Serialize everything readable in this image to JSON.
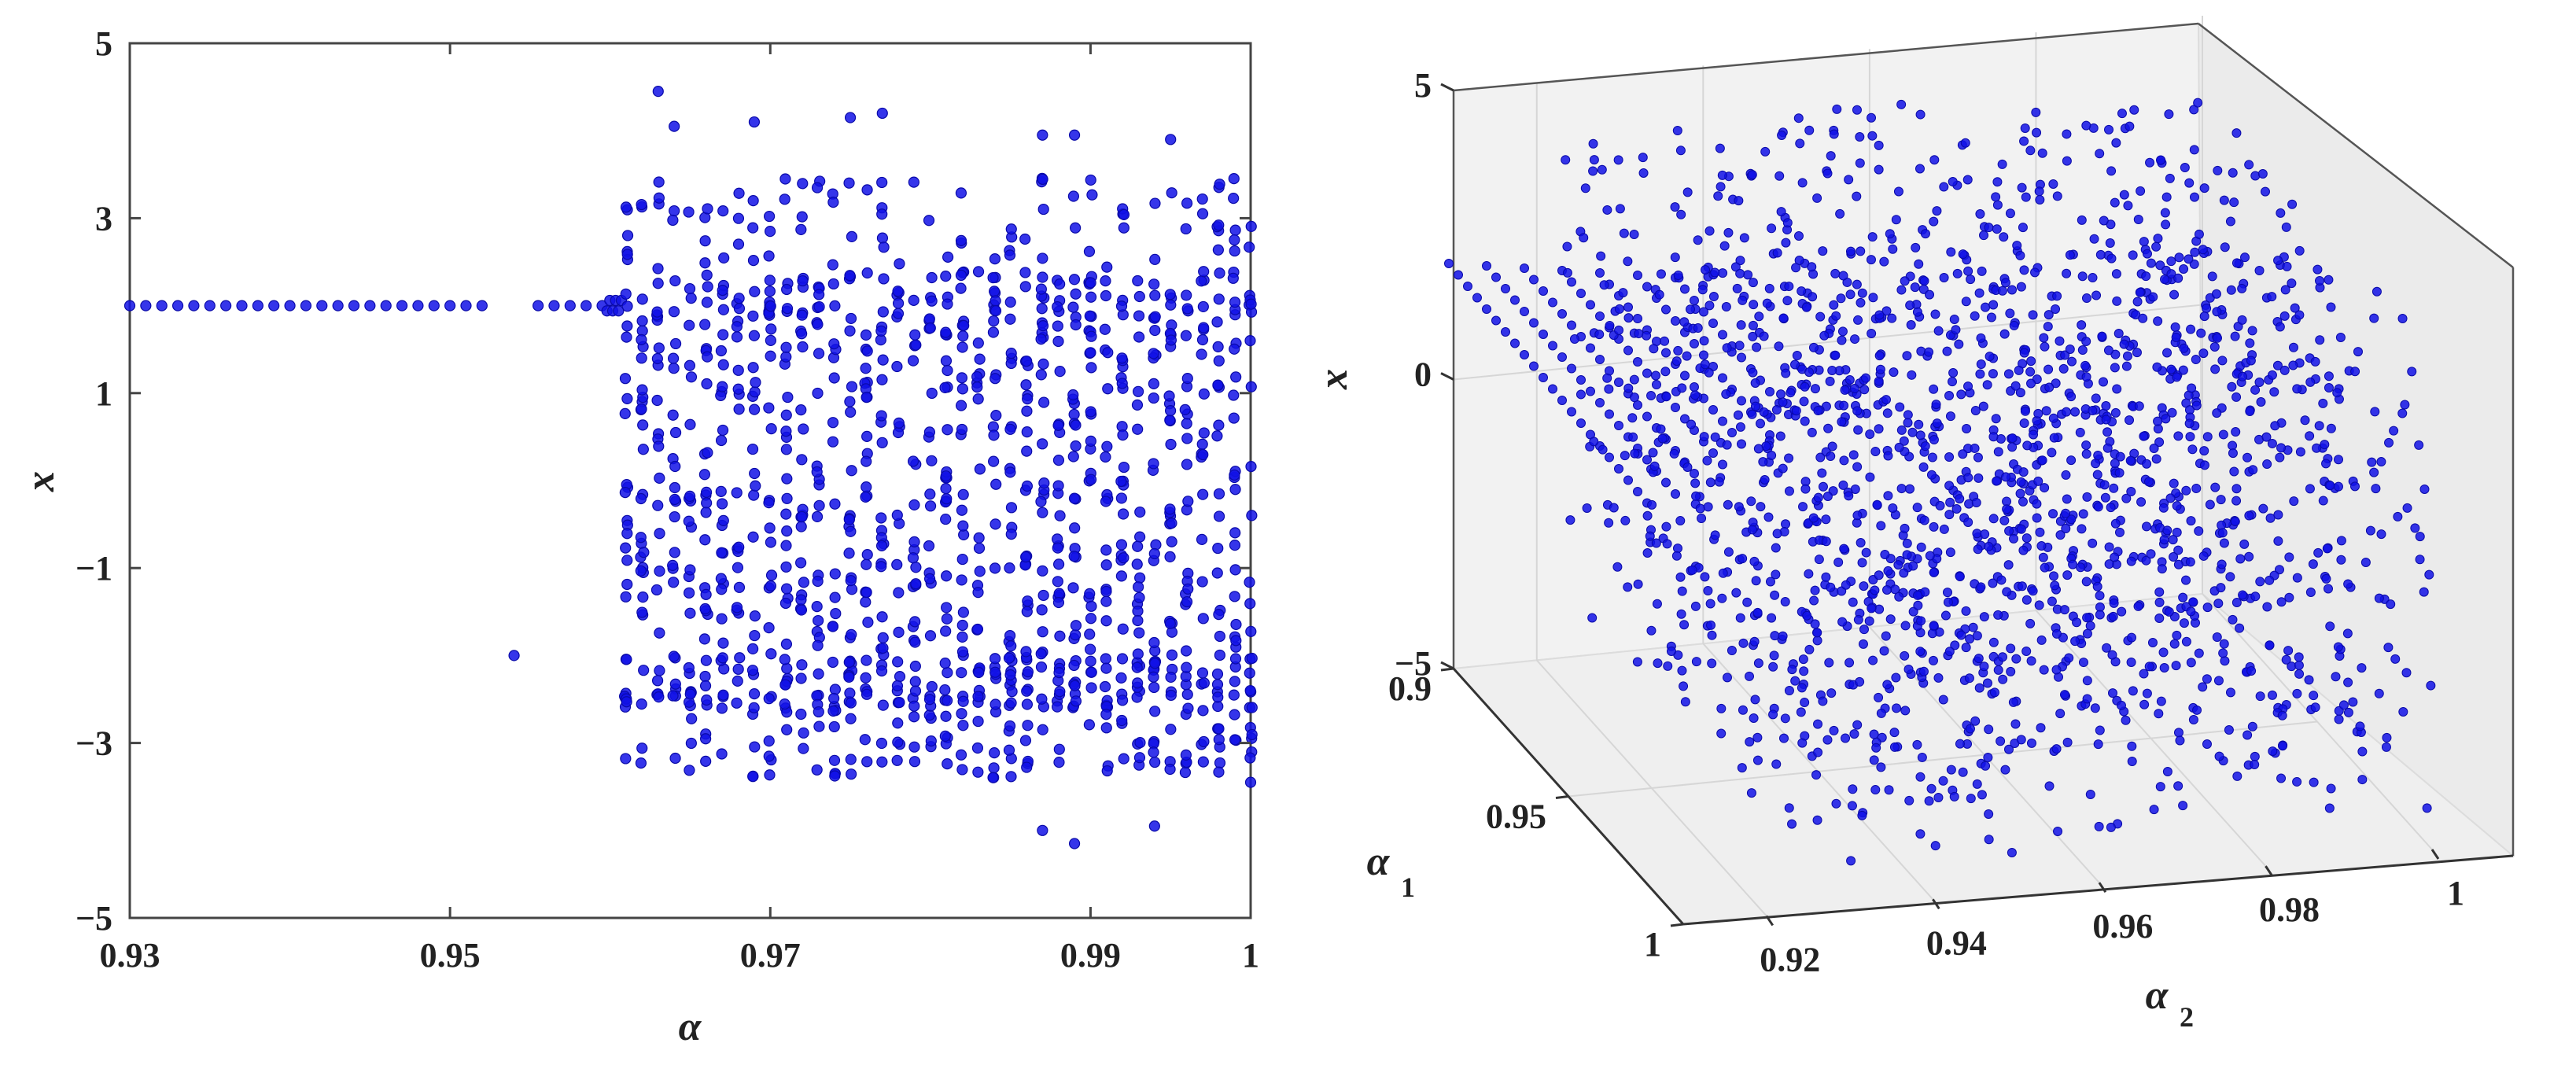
{
  "chart_data": [
    {
      "type": "scatter",
      "xlabel": "α",
      "ylabel": "x",
      "xlim": [
        0.93,
        1.0
      ],
      "ylim": [
        -5,
        5
      ],
      "x_ticks": [
        "0.93",
        "0.95",
        "0.97",
        "0.99",
        "1"
      ],
      "y_ticks": [
        "5",
        "3",
        "1",
        "−1",
        "−3",
        "−5"
      ],
      "marker_color": "#1212e6",
      "period_one_branch": {
        "x_from": 0.93,
        "x_to": 0.96,
        "y": 2.0,
        "step": 0.001
      },
      "isolated_points": [
        {
          "x": 0.954,
          "y": -2.0
        }
      ],
      "chaotic_region": {
        "x_from": 0.961,
        "x_to": 1.0,
        "y_min": -4.2,
        "y_max": 4.5
      },
      "extreme_points": [
        {
          "x": 0.963,
          "y": 4.45
        },
        {
          "x": 0.964,
          "y": 4.05
        },
        {
          "x": 0.969,
          "y": 4.1
        },
        {
          "x": 0.975,
          "y": 4.15
        },
        {
          "x": 0.977,
          "y": 4.2
        },
        {
          "x": 0.987,
          "y": 3.95
        },
        {
          "x": 0.989,
          "y": 3.95
        },
        {
          "x": 0.995,
          "y": 3.9
        },
        {
          "x": 0.989,
          "y": -4.15
        },
        {
          "x": 0.987,
          "y": -4.0
        },
        {
          "x": 0.994,
          "y": -3.95
        },
        {
          "x": 1.0,
          "y": -3.45
        }
      ]
    },
    {
      "type": "scatter",
      "projection": "3d",
      "xlabel": "α",
      "xlabel_sub": "2",
      "ylabel": "α",
      "ylabel_sub": "1",
      "zlabel": "x",
      "xlim": [
        0.91,
        1.0
      ],
      "ylim": [
        0.9,
        1.0
      ],
      "zlim": [
        -5,
        5
      ],
      "x_ticks": [
        "0.92",
        "0.94",
        "0.96",
        "0.98",
        "1"
      ],
      "y_ticks": [
        "0.9",
        "0.95",
        "1"
      ],
      "z_ticks": [
        "5",
        "0",
        "−5"
      ],
      "grid": true,
      "marker_color": "#1212e6",
      "period_one_lines": {
        "alpha1_values": [
          0.9,
          0.905,
          0.91,
          0.915,
          0.92,
          0.925,
          0.93
        ],
        "x_value": 2.0
      },
      "chaotic_region": {
        "x_min": -4.5,
        "x_max": 4.5
      }
    }
  ]
}
